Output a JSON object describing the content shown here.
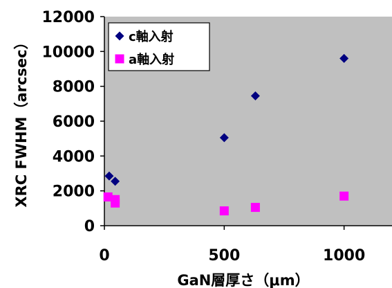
{
  "chart_data": {
    "type": "scatter",
    "title": "",
    "xlabel": "GaN層厚さ（μm）",
    "ylabel": "XRC FWHM（arcsec）",
    "xlim": [
      0,
      1200
    ],
    "ylim": [
      0,
      12000
    ],
    "x_ticks": [
      "0",
      "500",
      "1000"
    ],
    "y_ticks": [
      "0",
      "2000",
      "4000",
      "6000",
      "8000",
      "10000",
      "12000"
    ],
    "x_tick_values": [
      0,
      500,
      1000
    ],
    "y_tick_values": [
      0,
      2000,
      4000,
      6000,
      8000,
      10000,
      12000
    ],
    "grid": false,
    "plot_background": "#c0c0c0",
    "legend_position": "top-left",
    "series": [
      {
        "name": "c軸入射",
        "marker": "diamond",
        "color": "#000080",
        "points": [
          {
            "x": 20,
            "y": 2850
          },
          {
            "x": 45,
            "y": 2550
          },
          {
            "x": 500,
            "y": 5050
          },
          {
            "x": 630,
            "y": 7450
          },
          {
            "x": 1000,
            "y": 9600
          }
        ]
      },
      {
        "name": "a軸入射",
        "marker": "square",
        "color": "#ff00ff",
        "points": [
          {
            "x": 15,
            "y": 1650
          },
          {
            "x": 45,
            "y": 1500
          },
          {
            "x": 45,
            "y": 1300
          },
          {
            "x": 500,
            "y": 850
          },
          {
            "x": 630,
            "y": 1050
          },
          {
            "x": 1000,
            "y": 1700
          }
        ]
      }
    ]
  }
}
